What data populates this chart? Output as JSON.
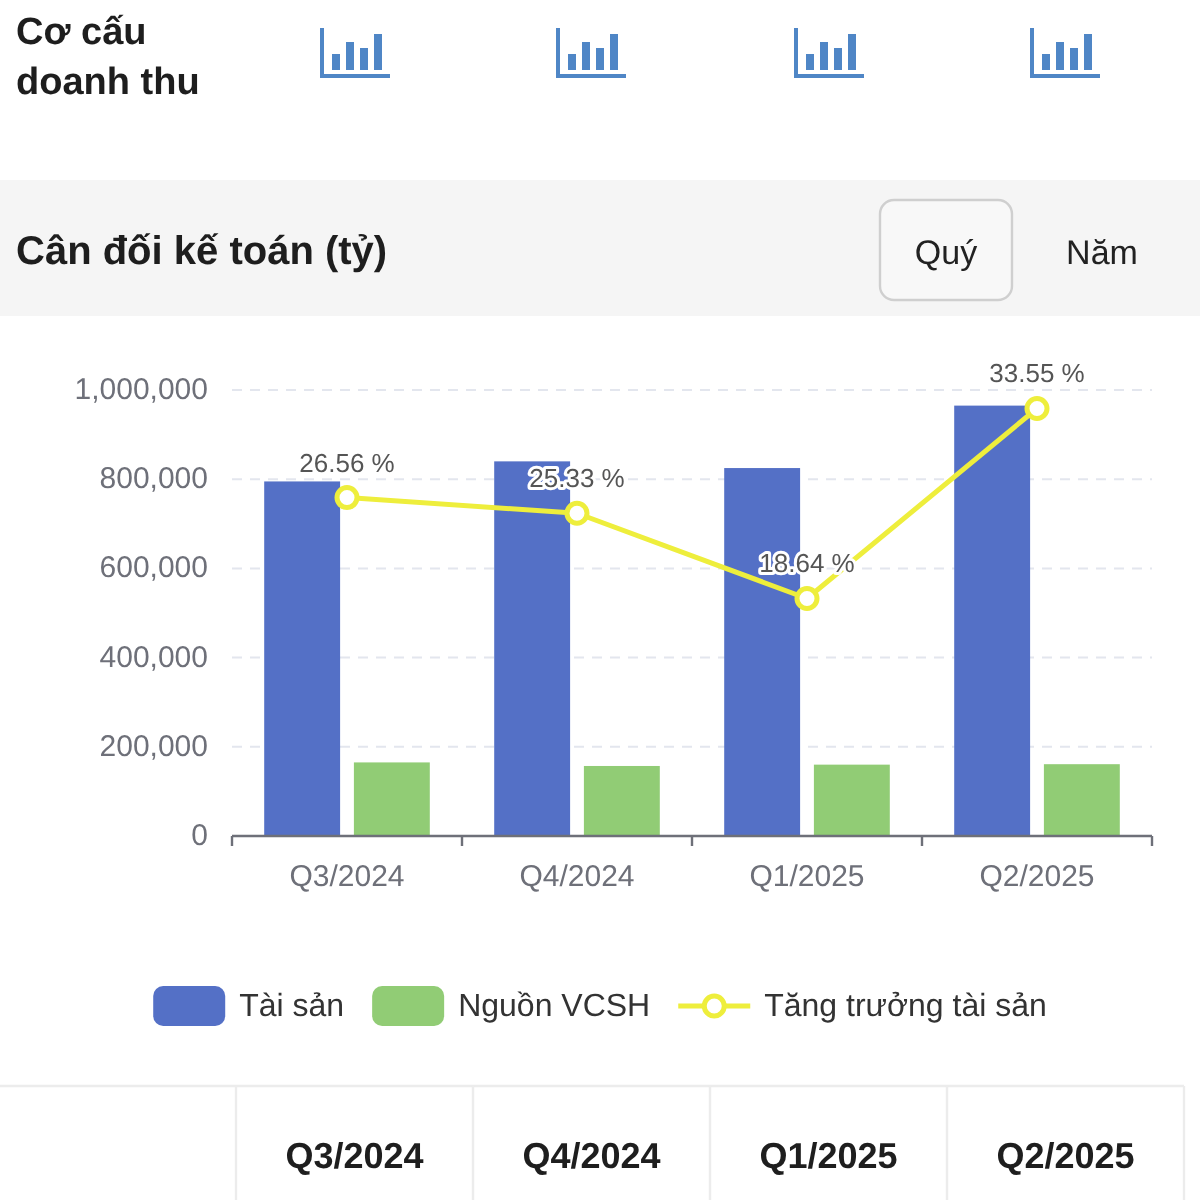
{
  "chart_data": {
    "type": "bar",
    "title": "Cân đối kế toán (tỷ)",
    "annotations": [
      "Cơ cấu doanh thu",
      "Quý",
      "Năm"
    ],
    "categories": [
      "Q3/2024",
      "Q4/2024",
      "Q1/2025",
      "Q2/2025"
    ],
    "series": [
      {
        "name": "Tài sản",
        "color": "#5470c6",
        "values": [
          795000,
          840000,
          825000,
          965000
        ]
      },
      {
        "name": "Nguồn VCSH",
        "color": "#91cc75",
        "values": [
          165000,
          157000,
          160000,
          161000
        ]
      },
      {
        "name": "Tăng trưởng tài sản",
        "type": "line",
        "axis": "y2",
        "color": "#eeee3c",
        "values": [
          26.56,
          25.33,
          18.64,
          33.55
        ],
        "value_labels": [
          "26.56 %",
          "25.33 %",
          "18.64 %",
          "33.55 %"
        ]
      }
    ],
    "ylim": [
      0,
      1000000
    ],
    "yticks": [
      0,
      {
        "value": 200000,
        "label": "200,000"
      },
      {
        "value": 400000,
        "label": "400,000"
      },
      {
        "value": 600000,
        "label": "600,000"
      },
      {
        "value": 800000,
        "label": "800,000"
      },
      {
        "value": 1000000,
        "label": "1,000,000"
      }
    ],
    "y2lim": [
      0,
      35
    ],
    "grid": "y",
    "legend": "bottom",
    "marker": "circle"
  }
}
